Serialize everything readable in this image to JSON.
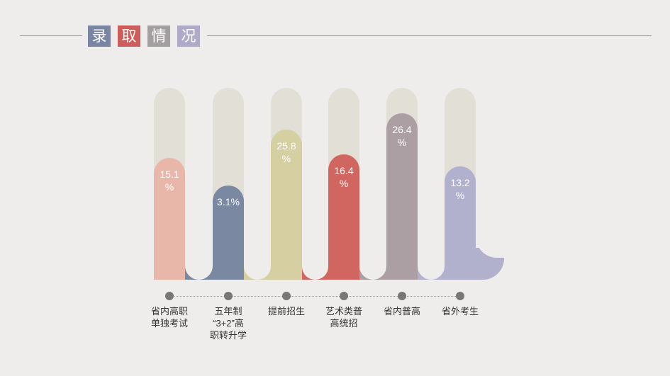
{
  "title": {
    "chars": [
      "录",
      "取",
      "情",
      "况"
    ],
    "colors": [
      "#7a84a3",
      "#cd5d5a",
      "#a39ea0",
      "#aeaac8"
    ]
  },
  "chart_data": {
    "type": "bar",
    "title": "录取情况",
    "categories": [
      "省内高职\n单独考试",
      "五年制\n“3+2”高\n职转升学",
      "提前招生",
      "艺术类普\n高统招",
      "省内普高",
      "省外考生"
    ],
    "values": [
      15.1,
      3.1,
      25.8,
      16.4,
      26.4,
      13.2
    ],
    "labels": [
      "15.1\n%",
      "3.1%",
      "25.8\n%",
      "16.4\n%",
      "26.4\n%",
      "13.2\n%"
    ],
    "unit": "%",
    "colors": [
      "#e9b7a9",
      "#7b88a1",
      "#d5cfa1",
      "#d0665f",
      "#ac9fa3",
      "#b1b0cd"
    ],
    "track_color": "#e2dfd6",
    "grid": false,
    "legend": "none"
  }
}
